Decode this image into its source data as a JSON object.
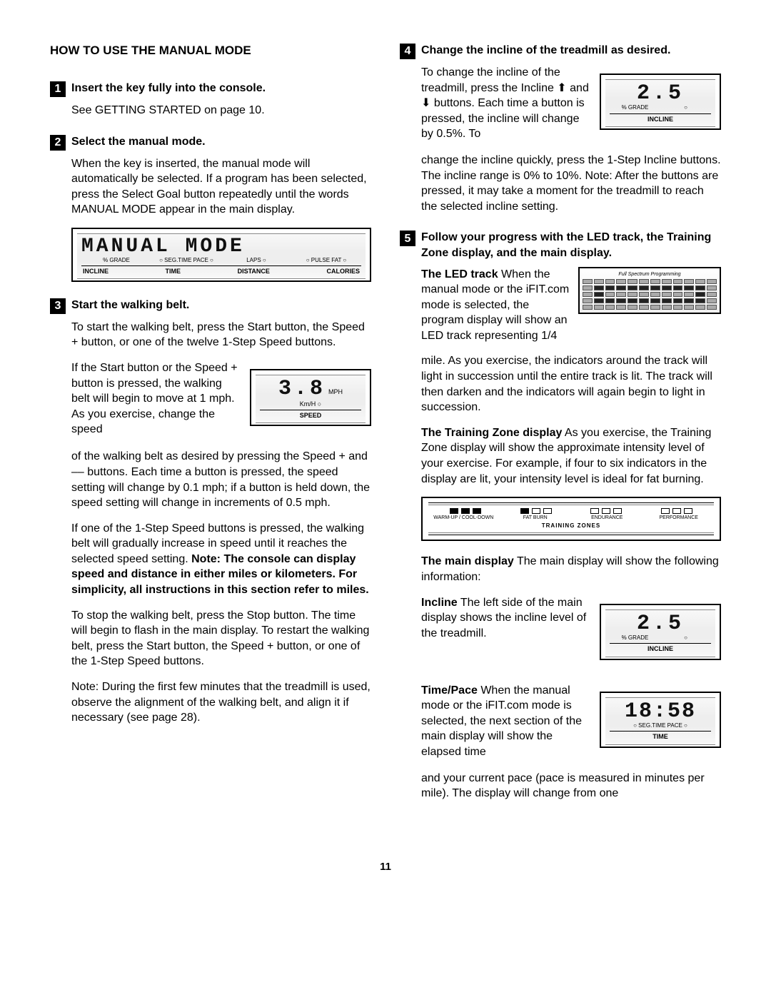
{
  "page_number": "11",
  "left": {
    "section_title": "HOW TO USE THE MANUAL MODE",
    "step1": {
      "num": "1",
      "title": "Insert the key fully into the console.",
      "p1": "See GETTING STARTED on page 10."
    },
    "step2": {
      "num": "2",
      "title": "Select the manual mode.",
      "p1": "When the key is inserted, the manual mode will automatically be selected. If a program has been selected, press the Select Goal button repeatedly until the words  MANUAL MODE  appear in the main display.",
      "lcd": {
        "text": "MANUAL  MODE",
        "top_labels": [
          "% GRADE",
          "○ SEG.TIME  PACE ○",
          "LAPS ○",
          "○ PULSE  FAT ○"
        ],
        "bottom_labels": [
          "INCLINE",
          "TIME",
          "DISTANCE",
          "CALORIES"
        ]
      }
    },
    "step3": {
      "num": "3",
      "title": "Start the walking belt.",
      "p1": "To start the walking belt, press the Start button, the Speed + button, or one of the twelve 1-Step Speed buttons.",
      "float_text": "If the Start button or the Speed + button is pressed, the walking belt will begin to move at 1 mph. As you exercise, change the speed",
      "mini_lcd": {
        "value": "3.8",
        "unit_top": "MPH",
        "unit_bottom": "Km/H ○",
        "foot": "SPEED"
      },
      "p2a": "of the walking belt as desired by pressing the Speed + and –– buttons. Each time a button is pressed, the speed setting will change by 0.1 mph; if a button is held down, the speed setting will change in increments of 0.5 mph.",
      "p3a": "If one of the 1-Step Speed buttons is pressed, the walking belt will gradually increase in speed until it reaches the selected speed setting. ",
      "p3b": "Note: The console can display speed and distance in either miles or kilometers. For simplicity, all instructions in this section refer to miles.",
      "p4": "To stop the walking belt, press the Stop button. The time will begin to flash in the main display. To restart the walking belt, press the Start button, the Speed + button, or one of the 1-Step Speed buttons.",
      "p5": "Note: During the first few minutes that the treadmill is used, observe the alignment of the walking belt, and align it if necessary (see page 28)."
    }
  },
  "right": {
    "step4": {
      "num": "4",
      "title": "Change the incline of the treadmill as desired.",
      "float_text": "To change the incline of the treadmill, press the Incline ⬆ and ⬇ buttons. Each time a button is pressed, the incline will change by 0.5%. To",
      "mini_lcd": {
        "value": "2.5",
        "label_left": "% GRADE",
        "foot": "INCLINE"
      },
      "p_after": "change the incline quickly, press the 1-Step Incline buttons. The incline range is 0% to 10%. Note: After the buttons are pressed, it may take a moment for the treadmill to reach the selected incline setting."
    },
    "step5": {
      "num": "5",
      "title": "Follow your progress with the LED track, the Training Zone display, and the main display.",
      "led_intro_bold": "The LED track",
      "led_intro_rest": " When the manual mode or the iFIT.com mode is selected, the program display will show an LED track representing 1/4",
      "led_track_title": "Full Spectrum Programming",
      "led_after": "mile. As you exercise, the indicators around the track will light in succession until the entire track is lit. The track will then darken and the indicators will again begin to light in succession.",
      "tz_bold": "The Training Zone display",
      "tz_rest": "    As you exercise, the Training Zone display will show the approximate intensity level of your exercise. For example, if four to six indicators in the display are lit, your intensity level is ideal for fat burning.",
      "tz_box": {
        "labels": [
          "WARM-UP / COOL-DOWN",
          "FAT BURN",
          "ENDURANCE",
          "PERFORMANCE"
        ],
        "title": "TRAINING ZONES"
      },
      "main_bold": "The main display",
      "main_rest": " The main display will show the following information:",
      "incline_bold": "Incline",
      "incline_rest": " The left side of the main display shows the incline level of the treadmill.",
      "incline_lcd": {
        "value": "2.5",
        "label_left": "% GRADE",
        "foot": "INCLINE"
      },
      "time_bold": "Time/Pace",
      "time_rest": " When the manual mode or the iFIT.com mode is selected, the next section of the main display will show the elapsed time",
      "time_lcd": {
        "value": "18:58",
        "label": "○ SEG.TIME  PACE ○",
        "foot": "TIME"
      },
      "time_after": "and your current pace (pace is measured in minutes per mile). The display will change from one"
    }
  }
}
